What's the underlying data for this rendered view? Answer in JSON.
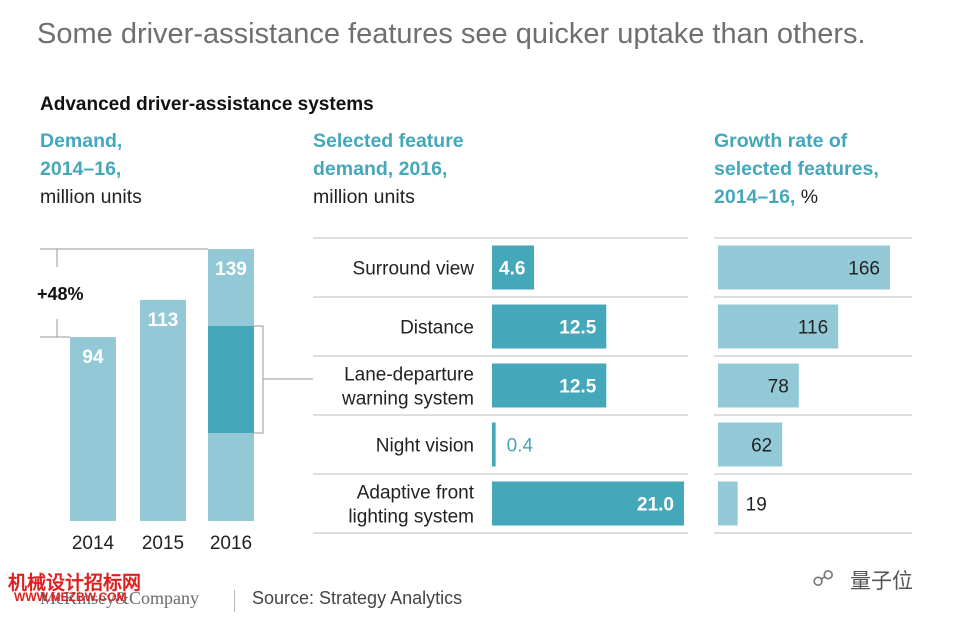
{
  "title": "Some driver-assistance features see quicker uptake than others.",
  "section_title": "Advanced driver-assistance systems",
  "col1": {
    "line1": "Demand,",
    "line2": "2014–16,",
    "line3": "million units"
  },
  "col2": {
    "line1": "Selected feature",
    "line2": "demand, 2016,",
    "line3": "million units"
  },
  "col3": {
    "line1": "Growth rate of",
    "line2": "selected features,",
    "line3": "2014–16,",
    "line3_unit": "%"
  },
  "footer": {
    "brand": "McKinsey&Company",
    "source": "Source: Strategy Analytics"
  },
  "watermark": {
    "left_cn": "机械设计招标网",
    "left_url": "WWW.MEZBW.COM",
    "right": "量子位"
  },
  "colors": {
    "teal_dark": "#45a7ba",
    "teal_light": "#93c9d6",
    "title_gray": "#6f6f6f"
  },
  "chart_data": [
    {
      "type": "bar",
      "categories": [
        "2014",
        "2015",
        "2016"
      ],
      "values": [
        94,
        113,
        139
      ],
      "value_labels": [
        "94",
        "113",
        "139"
      ],
      "annotation": "+48%",
      "ylim": [
        0,
        139
      ]
    },
    {
      "type": "bar",
      "orientation": "horizontal",
      "categories": [
        "Surround view",
        "Distance",
        "Lane-departure warning system",
        "Night vision",
        "Adaptive front lighting system"
      ],
      "category_lines": [
        [
          "Surround view"
        ],
        [
          "Distance"
        ],
        [
          "Lane-departure",
          "warning system"
        ],
        [
          "Night vision"
        ],
        [
          "Adaptive front",
          "lighting system"
        ]
      ],
      "values": [
        4.6,
        12.5,
        12.5,
        0.4,
        21.0
      ],
      "value_labels": [
        "4.6",
        "12.5",
        "12.5",
        "0.4",
        "21.0"
      ],
      "xlim": [
        0,
        21.0
      ]
    },
    {
      "type": "bar",
      "orientation": "horizontal",
      "categories": [
        "Surround view",
        "Distance",
        "Lane-departure warning system",
        "Night vision",
        "Adaptive front lighting system"
      ],
      "values": [
        166,
        116,
        78,
        62,
        19
      ],
      "value_labels": [
        "166",
        "116",
        "78",
        "62",
        "19"
      ],
      "xlim": [
        0,
        166
      ]
    }
  ]
}
